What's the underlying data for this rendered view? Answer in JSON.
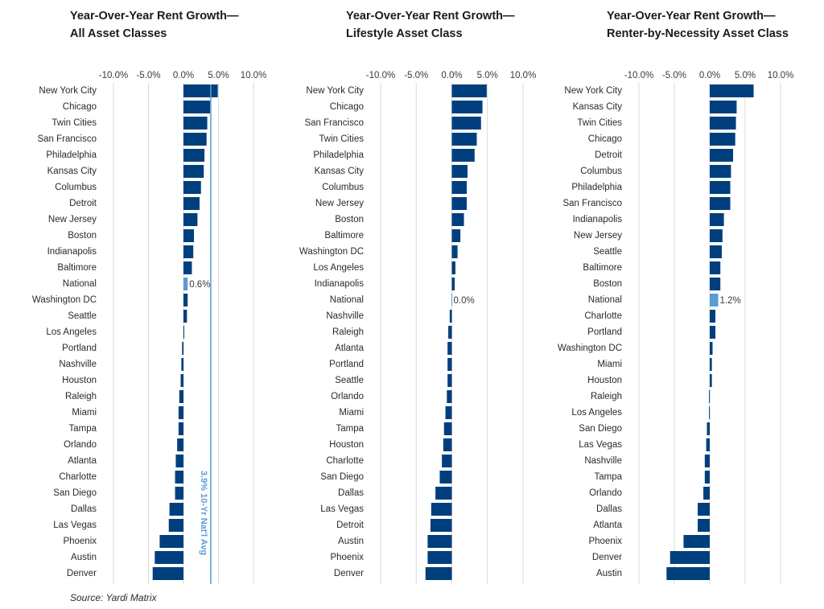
{
  "colors": {
    "bar": "#003f7d",
    "highlight": "#5b9bd5",
    "grid": "#d9d9d9",
    "avg_line": "#5b9bd5"
  },
  "source": "Source: Yardi Matrix",
  "chart_data": [
    {
      "type": "bar",
      "orientation": "horizontal",
      "title_lines": [
        "Year-Over-Year Rent Growth—",
        "All Asset Classes"
      ],
      "xlim": [
        -10,
        10
      ],
      "ticks": [
        "-10.0%",
        "-5.0%",
        "0.0%",
        "5.0%",
        "10.0%"
      ],
      "tick_values": [
        -10,
        -5,
        0,
        5,
        10
      ],
      "grid": true,
      "highlight": "National",
      "highlight_label": "0.6%",
      "reference_line": {
        "value": 3.9,
        "label": "3.9% 10-Yr Nat'l Avg"
      },
      "categories": [
        "New York City",
        "Chicago",
        "Twin Cities",
        "San Francisco",
        "Philadelphia",
        "Kansas City",
        "Columbus",
        "Detroit",
        "New Jersey",
        "Boston",
        "Indianapolis",
        "Baltimore",
        "National",
        "Washington DC",
        "Seattle",
        "Los Angeles",
        "Portland",
        "Nashville",
        "Houston",
        "Raleigh",
        "Miami",
        "Tampa",
        "Orlando",
        "Atlanta",
        "Charlotte",
        "San Diego",
        "Dallas",
        "Las Vegas",
        "Phoenix",
        "Austin",
        "Denver"
      ],
      "values": [
        4.9,
        3.8,
        3.4,
        3.3,
        3.0,
        2.9,
        2.5,
        2.3,
        2.0,
        1.5,
        1.4,
        1.2,
        0.6,
        0.6,
        0.5,
        0.1,
        -0.2,
        -0.3,
        -0.4,
        -0.6,
        -0.7,
        -0.7,
        -0.9,
        -1.1,
        -1.2,
        -1.2,
        -2.0,
        -2.1,
        -3.4,
        -4.1,
        -4.4
      ]
    },
    {
      "type": "bar",
      "orientation": "horizontal",
      "title_lines": [
        "Year-Over-Year Rent Growth—",
        "Lifestyle Asset Class"
      ],
      "xlim": [
        -10,
        10
      ],
      "ticks": [
        "-10.0%",
        "-5.0%",
        "0.0%",
        "5.0%",
        "10.0%"
      ],
      "tick_values": [
        -10,
        -5,
        0,
        5,
        10
      ],
      "grid": true,
      "highlight": "National",
      "highlight_label": "0.0%",
      "categories": [
        "New York City",
        "Chicago",
        "San Francisco",
        "Twin Cities",
        "Philadelphia",
        "Kansas City",
        "Columbus",
        "New Jersey",
        "Boston",
        "Baltimore",
        "Washington DC",
        "Los Angeles",
        "Indianapolis",
        "National",
        "Nashville",
        "Raleigh",
        "Atlanta",
        "Portland",
        "Seattle",
        "Orlando",
        "Miami",
        "Tampa",
        "Houston",
        "Charlotte",
        "San Diego",
        "Dallas",
        "Las Vegas",
        "Detroit",
        "Austin",
        "Phoenix",
        "Denver"
      ],
      "values": [
        4.9,
        4.3,
        4.1,
        3.5,
        3.2,
        2.2,
        2.1,
        2.1,
        1.7,
        1.2,
        0.8,
        0.5,
        0.4,
        0.0,
        -0.3,
        -0.5,
        -0.6,
        -0.6,
        -0.6,
        -0.7,
        -0.9,
        -1.1,
        -1.2,
        -1.4,
        -1.7,
        -2.3,
        -2.9,
        -3.0,
        -3.4,
        -3.4,
        -3.7
      ]
    },
    {
      "type": "bar",
      "orientation": "horizontal",
      "title_lines": [
        "Year-Over-Year Rent Growth—",
        "Renter-by-Necessity Asset Class"
      ],
      "xlim": [
        -10,
        10
      ],
      "ticks": [
        "-10.0%",
        "-5.0%",
        "0.0%",
        "5.0%",
        "10.0%"
      ],
      "tick_values": [
        -10,
        -5,
        0,
        5,
        10
      ],
      "grid": true,
      "highlight": "National",
      "highlight_label": "1.2%",
      "categories": [
        "New York City",
        "Kansas City",
        "Twin Cities",
        "Chicago",
        "Detroit",
        "Columbus",
        "Philadelphia",
        "San Francisco",
        "Indianapolis",
        "New Jersey",
        "Seattle",
        "Baltimore",
        "Boston",
        "National",
        "Charlotte",
        "Portland",
        "Washington DC",
        "Miami",
        "Houston",
        "Raleigh",
        "Los Angeles",
        "San Diego",
        "Las Vegas",
        "Nashville",
        "Tampa",
        "Orlando",
        "Dallas",
        "Atlanta",
        "Phoenix",
        "Denver",
        "Austin"
      ],
      "values": [
        6.2,
        3.8,
        3.7,
        3.6,
        3.3,
        3.0,
        2.9,
        2.9,
        2.0,
        1.8,
        1.7,
        1.5,
        1.5,
        1.2,
        0.8,
        0.8,
        0.4,
        0.3,
        0.3,
        -0.1,
        -0.1,
        -0.4,
        -0.5,
        -0.7,
        -0.7,
        -0.9,
        -1.7,
        -1.7,
        -3.7,
        -5.6,
        -6.1
      ]
    }
  ]
}
